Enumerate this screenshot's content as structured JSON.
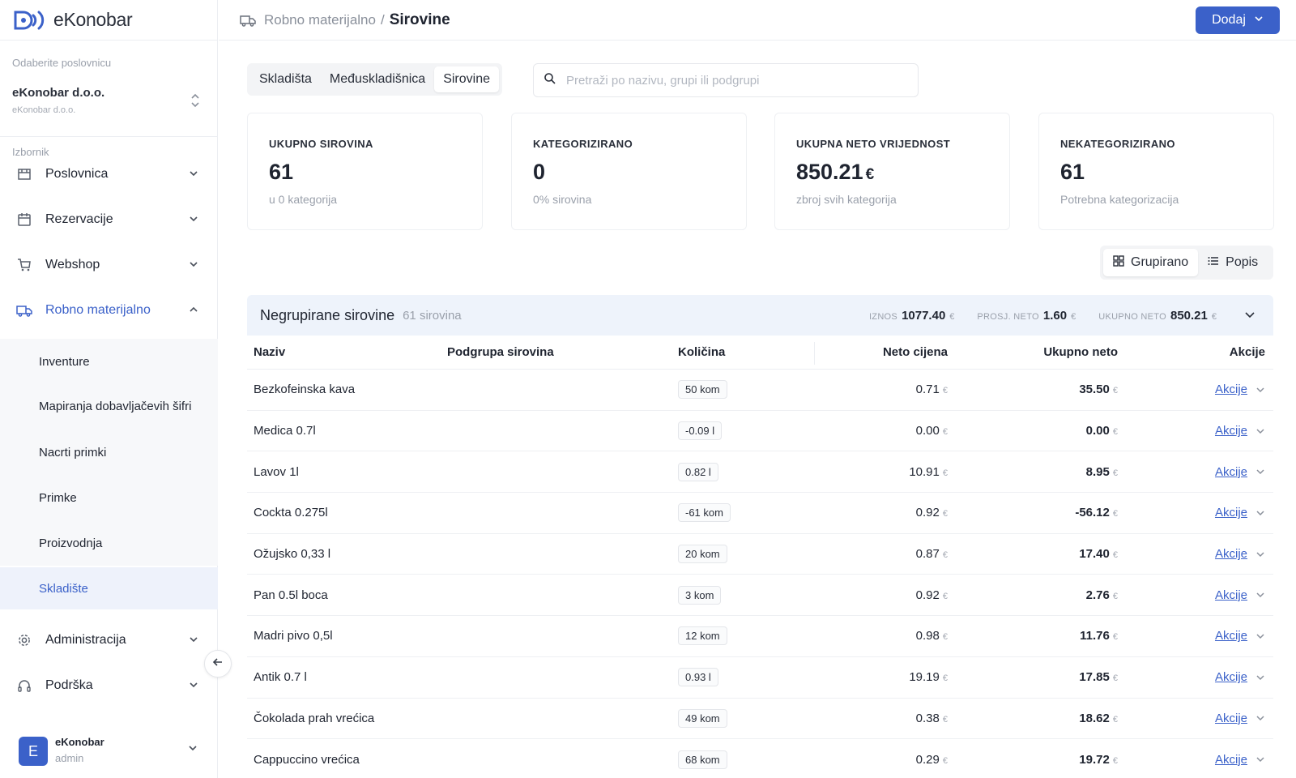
{
  "app": {
    "name": "eKonobar"
  },
  "sidebar": {
    "business_caption": "Odaberite poslovnicu",
    "business_name": "eKonobar d.o.o.",
    "business_sub": "eKonobar d.o.o.",
    "menu_caption": "Izbornik",
    "items": [
      {
        "label": "Poslovnica",
        "icon": "store-icon"
      },
      {
        "label": "Rezervacije",
        "icon": "calendar-icon"
      },
      {
        "label": "Webshop",
        "icon": "cart-icon"
      },
      {
        "label": "Robno materijalno",
        "icon": "truck-icon"
      },
      {
        "label": "Administracija",
        "icon": "gear-icon"
      },
      {
        "label": "Podrška",
        "icon": "headphones-icon"
      }
    ],
    "subitems": [
      "Inventure",
      "Mapiranja dobavljačevih šifri",
      "Nacrti primki",
      "Primke",
      "Proizvodnja",
      "Skladište"
    ],
    "user": {
      "initial": "E",
      "name": "eKonobar",
      "role": "admin"
    }
  },
  "header": {
    "parent": "Robno materijalno",
    "separator": "/",
    "current": "Sirovine",
    "add_label": "Dodaj"
  },
  "tabs": [
    "Skladišta",
    "Međuskladišnica",
    "Sirovine"
  ],
  "search": {
    "placeholder": "Pretraži po nazivu, grupi ili podgrupi",
    "value": ""
  },
  "stats": [
    {
      "label": "UKUPNO SIROVINA",
      "value": "61",
      "currency": "",
      "sub": "u 0 kategorija"
    },
    {
      "label": "KATEGORIZIRANO",
      "value": "0",
      "currency": "",
      "sub": "0% sirovina"
    },
    {
      "label": "UKUPNA NETO VRIJEDNOST",
      "value": "850.21",
      "currency": "€",
      "sub": "zbroj svih kategorija"
    },
    {
      "label": "NEKATEGORIZIRANO",
      "value": "61",
      "currency": "",
      "sub": "Potrebna kategorizacija"
    }
  ],
  "view": {
    "grouped": "Grupirano",
    "list": "Popis"
  },
  "group": {
    "title": "Negrupirane sirovine",
    "count": "61 sirovina",
    "iznos_label": "IZNOS",
    "iznos_value": "1077.40",
    "iznos_cur": "€",
    "prosj_label": "PROSJ. NETO",
    "prosj_value": "1.60",
    "prosj_cur": "€",
    "ukupno_label": "UKUPNO NETO",
    "ukupno_value": "850.21",
    "ukupno_cur": "€"
  },
  "table": {
    "columns": {
      "naziv": "Naziv",
      "podgrupa": "Podgrupa sirovina",
      "kolicina": "Količina",
      "neto": "Neto cijena",
      "ukupno": "Ukupno neto",
      "akcije": "Akcije"
    },
    "currency": "€",
    "action_label": "Akcije",
    "rows": [
      {
        "name": "Bezkofeinska kava",
        "qty": "50 kom",
        "net": "0.71",
        "total": "35.50"
      },
      {
        "name": "Medica 0.7l",
        "qty": "-0.09 l",
        "net": "0.00",
        "total": "0.00"
      },
      {
        "name": "Lavov 1l",
        "qty": "0.82 l",
        "net": "10.91",
        "total": "8.95"
      },
      {
        "name": "Cockta 0.275l",
        "qty": "-61 kom",
        "net": "0.92",
        "total": "-56.12"
      },
      {
        "name": "Ožujsko 0,33 l",
        "qty": "20 kom",
        "net": "0.87",
        "total": "17.40"
      },
      {
        "name": "Pan 0.5l boca",
        "qty": "3 kom",
        "net": "0.92",
        "total": "2.76"
      },
      {
        "name": "Madri pivo 0,5l",
        "qty": "12 kom",
        "net": "0.98",
        "total": "11.76"
      },
      {
        "name": "Antik 0.7 l",
        "qty": "0.93 l",
        "net": "19.19",
        "total": "17.85"
      },
      {
        "name": "Čokolada prah vrećica",
        "qty": "49 kom",
        "net": "0.38",
        "total": "18.62"
      },
      {
        "name": "Cappuccino vrećica",
        "qty": "68 kom",
        "net": "0.29",
        "total": "19.72"
      }
    ]
  }
}
